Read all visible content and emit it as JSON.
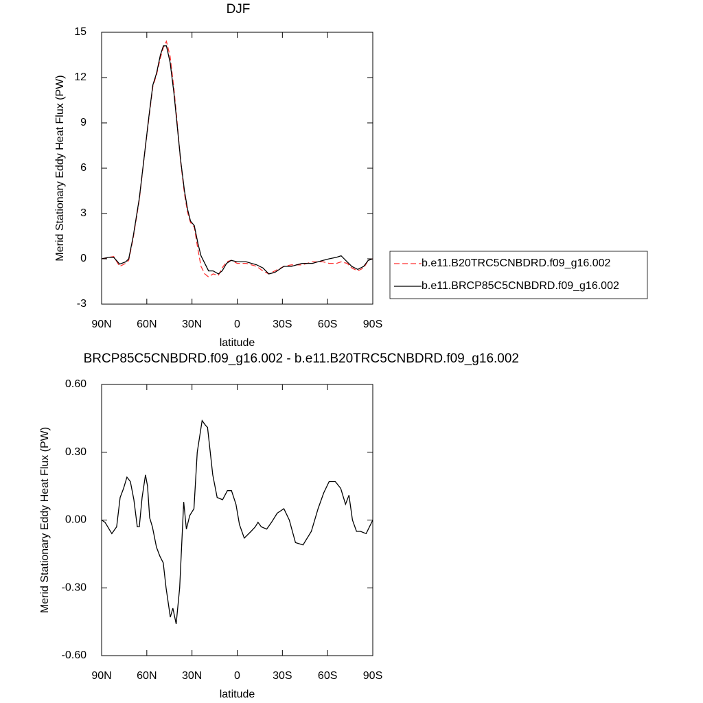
{
  "chart_data": [
    {
      "type": "line",
      "title": "DJF",
      "xlabel": "latitude",
      "ylabel": "Merid Stationary Eddy Heat Flux (PW)",
      "x": [
        90,
        85,
        82,
        78,
        74,
        72,
        69,
        65,
        62,
        58.5,
        56,
        53.5,
        51,
        49,
        47,
        44.5,
        42,
        40,
        37.5,
        35,
        33,
        31,
        28.5,
        26,
        24,
        21.5,
        19,
        16,
        12.5,
        10,
        7,
        4,
        0,
        -6,
        -13,
        -17,
        -21,
        -25,
        -31,
        -36,
        -43,
        -50,
        -57,
        -61,
        -66,
        -69,
        -73,
        -76,
        -80,
        -84,
        -87,
        -90
      ],
      "series": [
        {
          "name": "b.e11.B20TRC5CNBDRD.f09_g16.002",
          "color": "#ff3030",
          "dash": true,
          "values": [
            0,
            0.1,
            0.15,
            -0.5,
            -0.3,
            -0.1,
            1.4,
            3.9,
            6.5,
            9.4,
            11.4,
            12.2,
            13.3,
            14.0,
            14.4,
            13.4,
            11.3,
            9.2,
            6.4,
            4.3,
            3.1,
            2.4,
            2.1,
            0.6,
            -0.5,
            -1.0,
            -1.2,
            -1.0,
            -1.1,
            -0.6,
            -0.2,
            -0.1,
            -0.3,
            -0.3,
            -0.5,
            -0.8,
            -1,
            -0.8,
            -0.5,
            -0.4,
            -0.4,
            -0.2,
            -0.2,
            -0.3,
            -0.3,
            -0.2,
            -0.3,
            -0.6,
            -0.8,
            -0.6,
            -0.1,
            0
          ]
        },
        {
          "name": "b.e11.BRCP85C5CNBDRD.f09_g16.002",
          "color": "#000000",
          "dash": false,
          "values": [
            0,
            0.1,
            0.1,
            -0.35,
            -0.2,
            0,
            1.5,
            4,
            6.5,
            9.5,
            11.5,
            12.3,
            13.5,
            14.1,
            14.1,
            13,
            11,
            9,
            6.5,
            4.5,
            3.3,
            2.5,
            2.2,
            1,
            0.2,
            -0.3,
            -0.8,
            -0.8,
            -1,
            -0.8,
            -0.3,
            -0.1,
            -0.2,
            -0.2,
            -0.4,
            -0.6,
            -1,
            -0.9,
            -0.5,
            -0.5,
            -0.3,
            -0.3,
            -0.1,
            0,
            0.1,
            0.2,
            -0.2,
            -0.5,
            -0.7,
            -0.5,
            -0.1,
            0
          ]
        }
      ],
      "xlim": [
        90,
        -90
      ],
      "xticks": [
        {
          "value": 90,
          "label": "90N"
        },
        {
          "value": 60,
          "label": "60N"
        },
        {
          "value": 30,
          "label": "30N"
        },
        0,
        {
          "value": -30,
          "label": "30S"
        },
        {
          "value": -60,
          "label": "60S"
        },
        {
          "value": -90,
          "label": "90S"
        }
      ],
      "ylim": [
        -3,
        15
      ],
      "yticks": [
        15,
        12,
        9,
        6,
        3,
        0,
        -3
      ],
      "legend": "right"
    },
    {
      "type": "line",
      "title": "BRCP85C5CNBDRD.f09_g16.002 - b.e11.B20TRC5CNBDRD.f09_g16.002",
      "xlabel": "latitude",
      "ylabel": "Merid Stationary Eddy Heat Flux (PW)",
      "x": [
        90,
        87.7,
        83.2,
        80,
        77.7,
        75.4,
        73.2,
        70.9,
        68.6,
        66.3,
        65,
        63.1,
        60.9,
        59.5,
        58.1,
        56.3,
        53.6,
        51.3,
        49.1,
        47.2,
        44.4,
        42.7,
        40.5,
        38.2,
        35.5,
        33.7,
        31.5,
        28.7,
        26.5,
        23.3,
        21.1,
        19.7,
        16.2,
        13.3,
        9.7,
        6.5,
        3.8,
        0.8,
        -1.5,
        -4.7,
        -9.2,
        -12,
        -13.8,
        -16,
        -19.6,
        -22.8,
        -26.5,
        -31,
        -34.6,
        -38.7,
        -43.7,
        -49.2,
        -53.7,
        -57.4,
        -61,
        -65.1,
        -68.7,
        -71.9,
        -74.2,
        -76.5,
        -79.2,
        -81.9,
        -85.6,
        -90
      ],
      "series": [
        {
          "color": "#000000",
          "dash": false,
          "values": [
            0,
            -0.01,
            -0.06,
            -0.03,
            0.1,
            0.14,
            0.19,
            0.17,
            0.09,
            -0.03,
            -0.03,
            0.1,
            0.2,
            0.15,
            0.01,
            -0.03,
            -0.12,
            -0.16,
            -0.19,
            -0.3,
            -0.43,
            -0.39,
            -0.46,
            -0.3,
            0.08,
            -0.04,
            0.02,
            0.05,
            0.3,
            0.44,
            0.42,
            0.41,
            0.2,
            0.1,
            0.09,
            0.13,
            0.13,
            0.07,
            -0.02,
            -0.08,
            -0.05,
            -0.03,
            -0.01,
            -0.03,
            -0.04,
            -0.01,
            0.03,
            0.05,
            0,
            -0.1,
            -0.11,
            -0.05,
            0.05,
            0.12,
            0.17,
            0.17,
            0.14,
            0.07,
            0.11,
            0,
            -0.05,
            -0.05,
            -0.06,
            0
          ]
        }
      ],
      "xlim": [
        90,
        -90
      ],
      "xticks": [
        {
          "value": 90,
          "label": "90N"
        },
        {
          "value": 60,
          "label": "60N"
        },
        {
          "value": 30,
          "label": "30N"
        },
        0,
        {
          "value": -30,
          "label": "30S"
        },
        {
          "value": -60,
          "label": "60S"
        },
        {
          "value": -90,
          "label": "90S"
        }
      ],
      "ylim": [
        -0.6,
        0.6
      ],
      "yticks": [
        {
          "value": 0.6,
          "label": "0.60"
        },
        {
          "value": 0.3,
          "label": "0.30"
        },
        {
          "value": 0,
          "label": "0.00"
        },
        {
          "value": -0.3,
          "label": "-0.30"
        },
        {
          "value": -0.6,
          "label": "-0.60"
        }
      ]
    }
  ]
}
